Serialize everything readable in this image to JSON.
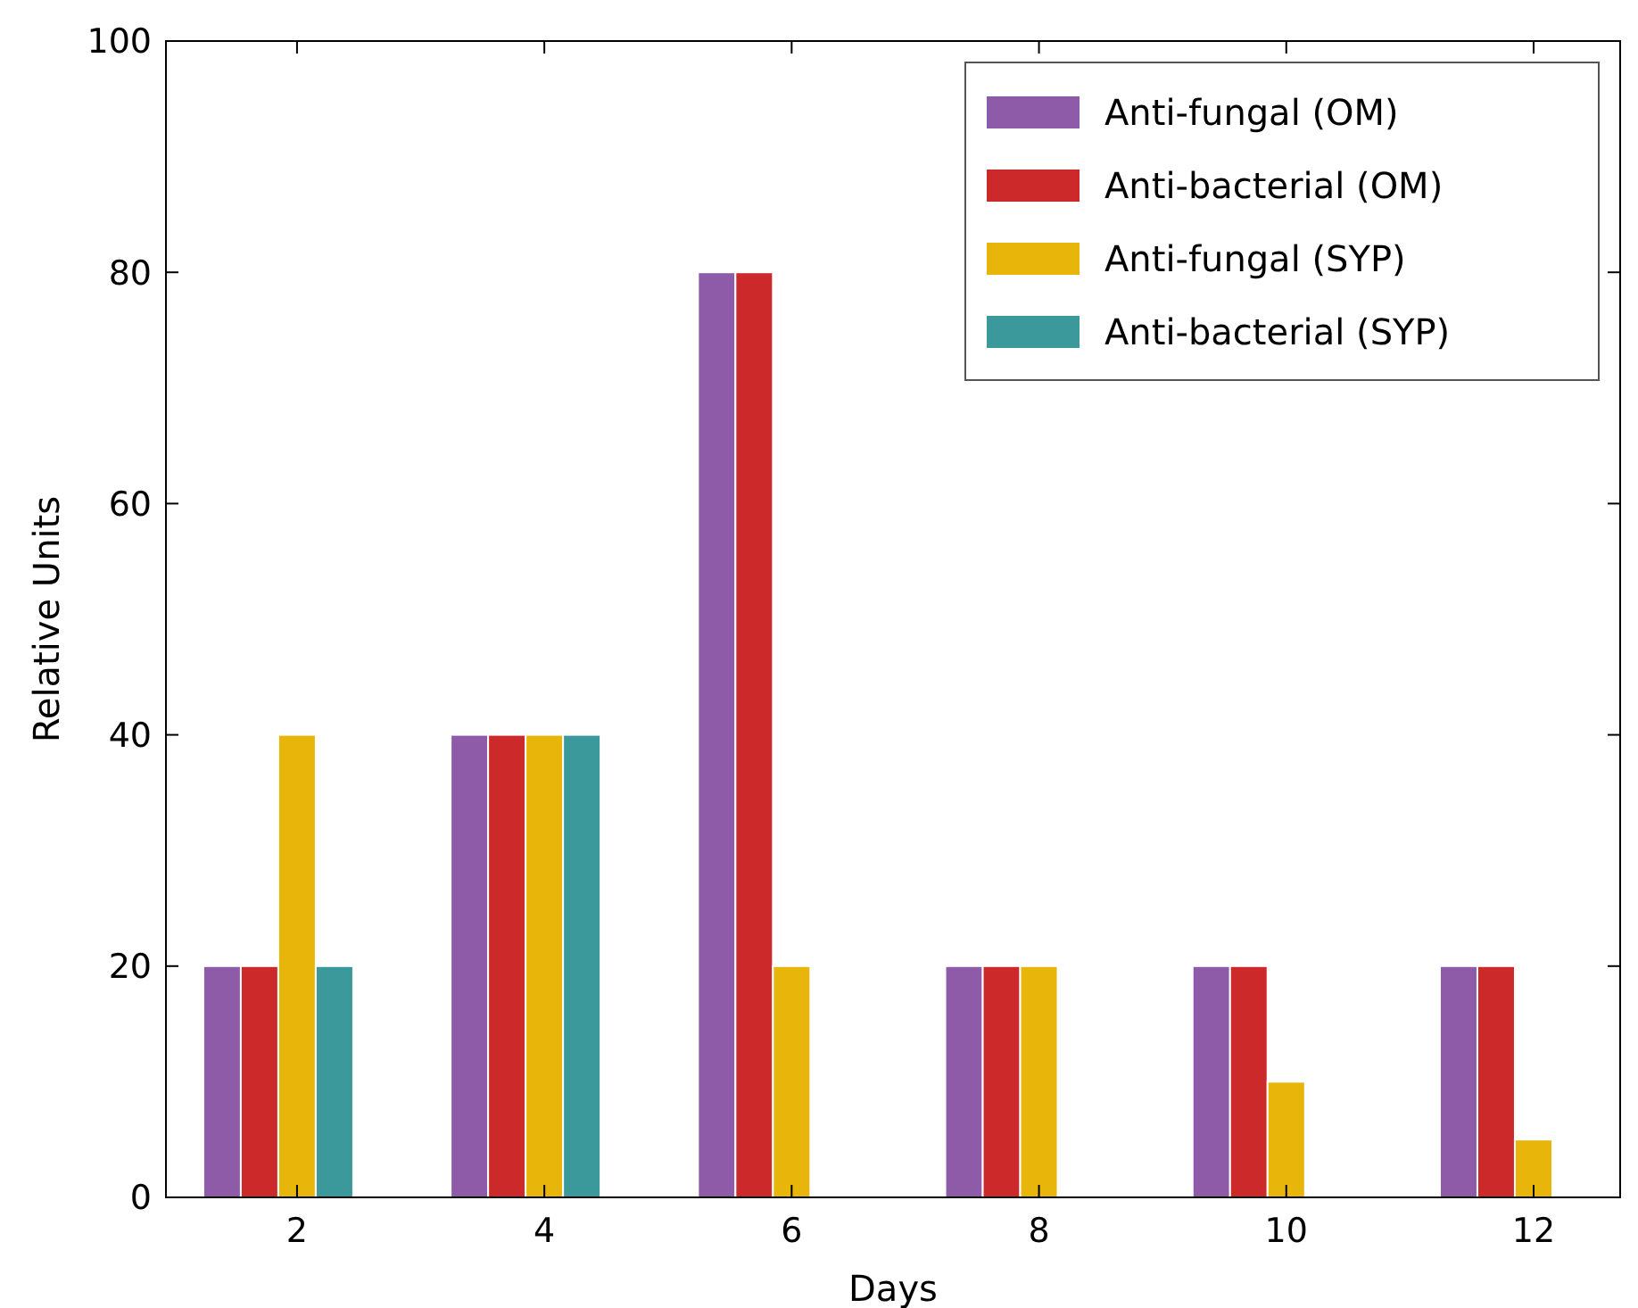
{
  "chart_data": {
    "type": "bar",
    "xlabel": "Days",
    "ylabel": "Relative Units",
    "categories": [
      "2",
      "4",
      "6",
      "8",
      "10",
      "12"
    ],
    "series": [
      {
        "name": "Anti-fungal (OM)",
        "color": "#8e5ba8",
        "values": [
          20,
          40,
          80,
          20,
          20,
          20
        ]
      },
      {
        "name": "Anti-bacterial (OM)",
        "color": "#cc2a2a",
        "values": [
          20,
          40,
          80,
          20,
          20,
          20
        ]
      },
      {
        "name": "Anti-fungal (SYP)",
        "color": "#e8b60a",
        "values": [
          40,
          40,
          20,
          20,
          10,
          5
        ]
      },
      {
        "name": "Anti-bacterial (SYP)",
        "color": "#3b999c",
        "values": [
          20,
          40,
          null,
          null,
          null,
          null
        ]
      }
    ],
    "ylim": [
      0,
      100
    ],
    "yticks": [
      0,
      20,
      40,
      60,
      80,
      100
    ],
    "grid": false,
    "legend": "top right"
  }
}
